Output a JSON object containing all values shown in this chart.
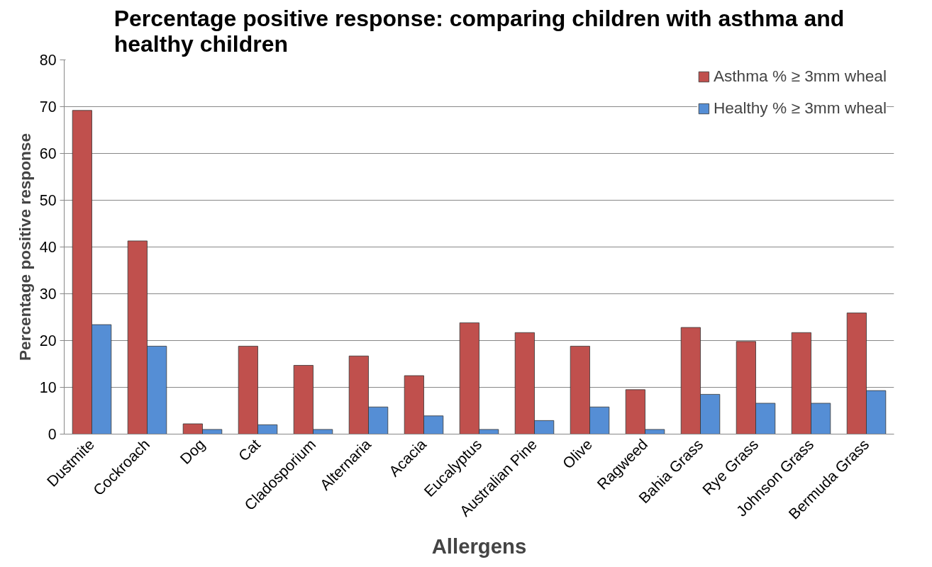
{
  "chart_data": {
    "type": "bar",
    "title": "Percentage positive response: comparing children with asthma and healthy children",
    "xlabel": "Allergens",
    "ylabel": "Percentage positive response",
    "categories": [
      "Dustmite",
      "Cockroach",
      "Dog",
      "Cat",
      "Cladosporium",
      "Alternaria",
      "Acacia",
      "Eucalyptus",
      "Australian Pine",
      "Olive",
      "Ragweed",
      "Bahia Grass",
      "Rye Grass",
      "Johnson Grass",
      "Bermuda Grass"
    ],
    "series": [
      {
        "name": "Asthma % ≥ 3mm wheal",
        "color": "#c0504d",
        "values": [
          69.2,
          41.3,
          2.2,
          18.8,
          14.7,
          16.7,
          12.5,
          23.8,
          21.7,
          18.8,
          9.5,
          22.8,
          19.8,
          21.7,
          25.9
        ]
      },
      {
        "name": "Healthy % ≥ 3mm wheal",
        "color": "#558ed5",
        "values": [
          23.4,
          18.8,
          1.0,
          2.0,
          1.0,
          5.8,
          3.9,
          1.0,
          2.9,
          5.8,
          1.0,
          8.5,
          6.6,
          6.6,
          9.3
        ]
      }
    ],
    "ylim": [
      0,
      80
    ],
    "yticks": [
      0,
      10,
      20,
      30,
      40,
      50,
      60,
      70,
      80
    ],
    "grid": "y",
    "legend": "top right"
  }
}
